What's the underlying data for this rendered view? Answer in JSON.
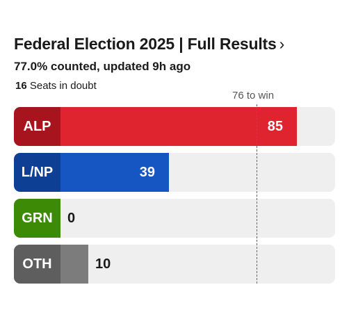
{
  "header": {
    "title": "Federal Election 2025 | Full Results",
    "chevron": "›",
    "subtitle": "77.0% counted, updated 9h ago",
    "doubt_count": "16",
    "doubt_label": "Seats in doubt"
  },
  "chart": {
    "win_label": "76 to win",
    "win_threshold": 76,
    "scale_max": 100
  },
  "parties": [
    {
      "abbr": "ALP",
      "seats": 85,
      "cap_color": "#a8141d",
      "bar_color": "#e0242f",
      "text_inside": true
    },
    {
      "abbr": "L/NP",
      "seats": 39,
      "cap_color": "#0d3f94",
      "bar_color": "#1556c2",
      "text_inside": true
    },
    {
      "abbr": "GRN",
      "seats": 0,
      "cap_color": "#3c8a06",
      "bar_color": "#4fa80a",
      "text_inside": false
    },
    {
      "abbr": "OTH",
      "seats": 10,
      "cap_color": "#5e5e5e",
      "bar_color": "#7c7c7c",
      "text_inside": false
    }
  ]
}
